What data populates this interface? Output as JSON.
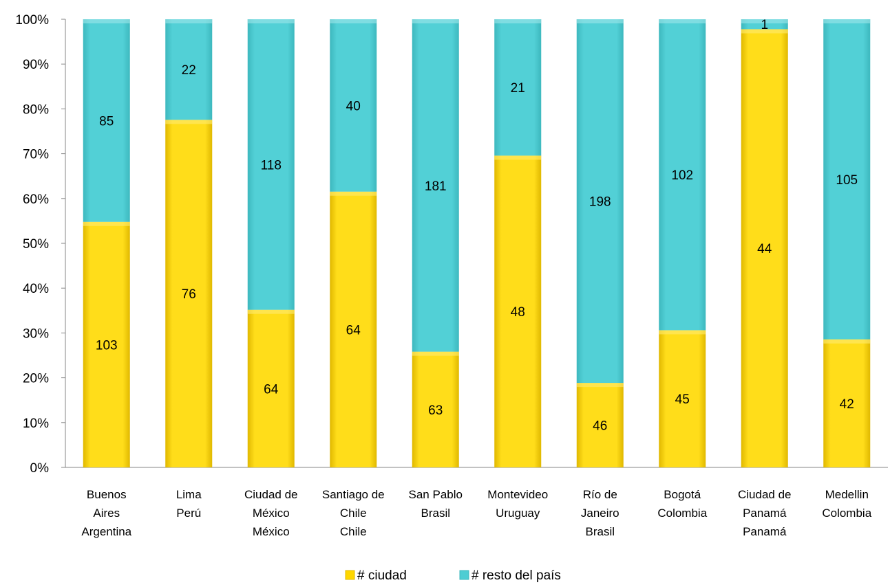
{
  "chart_data": {
    "type": "bar",
    "stacked": "percent",
    "categories": [
      [
        "Buenos",
        "Aires",
        "Argentina"
      ],
      [
        "Lima",
        "Perú"
      ],
      [
        "Ciudad de",
        "México",
        "México"
      ],
      [
        "Santiago de",
        "Chile",
        "Chile"
      ],
      [
        "San Pablo",
        "Brasil"
      ],
      [
        "Montevideo",
        "Uruguay"
      ],
      [
        "Río de",
        "Janeiro",
        "Brasil"
      ],
      [
        "Bogotá",
        "Colombia"
      ],
      [
        "Ciudad de",
        "Panamá",
        "Panamá"
      ],
      [
        "Medellin",
        "Colombia"
      ]
    ],
    "series": [
      {
        "name": "# ciudad",
        "color": "#FFD700",
        "values": [
          103,
          76,
          64,
          64,
          63,
          48,
          46,
          45,
          44,
          42
        ]
      },
      {
        "name": "# resto del país",
        "color": "#4ECDD3",
        "values": [
          85,
          22,
          118,
          40,
          181,
          21,
          198,
          102,
          1,
          105
        ]
      }
    ],
    "y_ticks": [
      "0%",
      "10%",
      "20%",
      "30%",
      "40%",
      "50%",
      "60%",
      "70%",
      "80%",
      "90%",
      "100%"
    ],
    "ylim": [
      0,
      100
    ],
    "legend_position": "bottom",
    "grid": false
  }
}
